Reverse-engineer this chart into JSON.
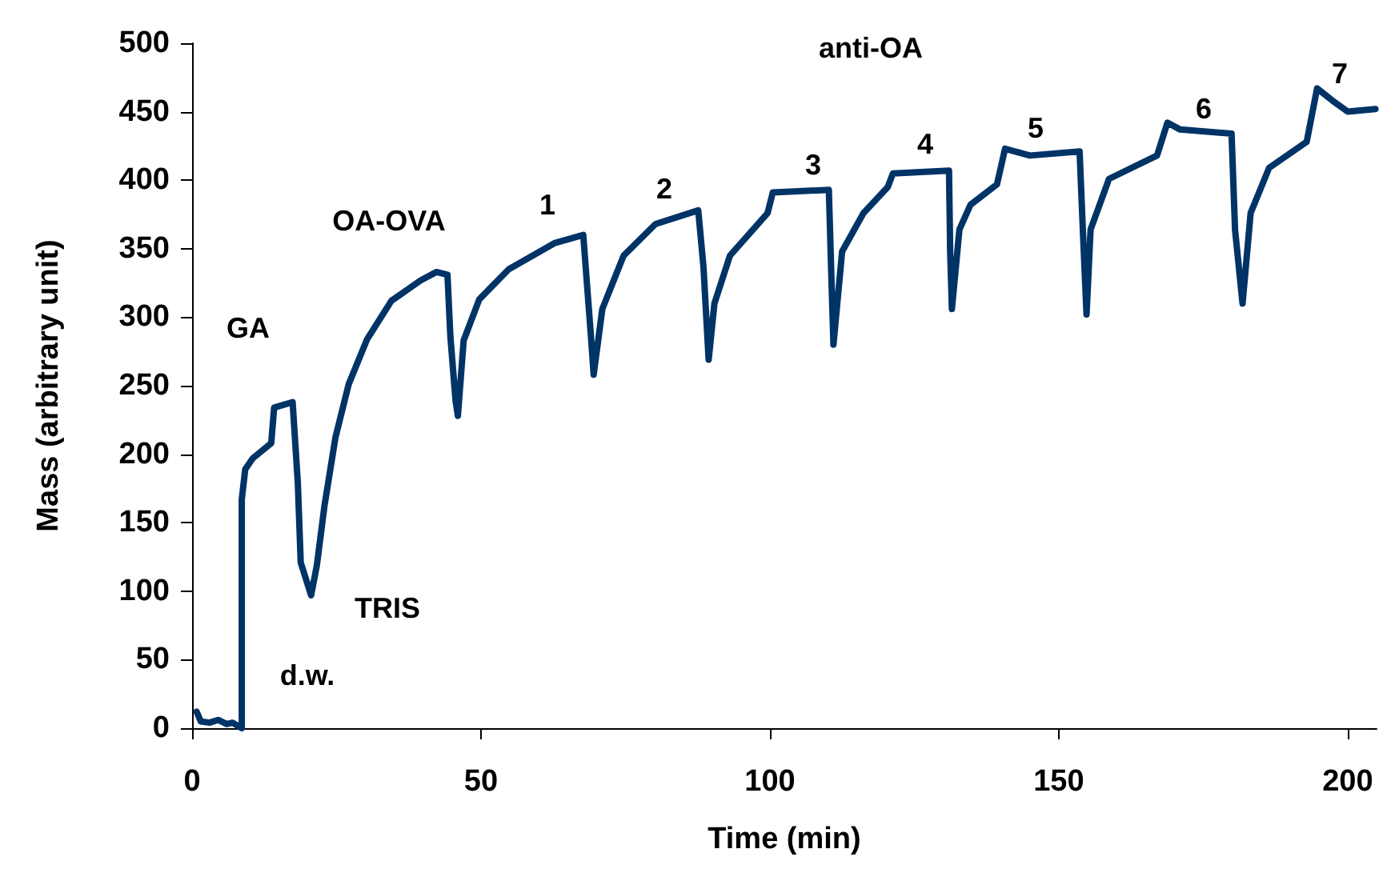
{
  "chart_data": {
    "type": "line",
    "xlabel": "Time (min)",
    "ylabel": "Mass (arbitrary unit)",
    "xlim": [
      0,
      205
    ],
    "xticks": [
      0,
      50,
      100,
      150,
      200
    ],
    "ylim": [
      0,
      500
    ],
    "yticks": [
      0,
      50,
      100,
      150,
      200,
      250,
      300,
      350,
      400,
      450,
      500
    ],
    "grid": false,
    "marker": "none",
    "line_style": "solid",
    "series": [
      {
        "color": "#003366",
        "x": [
          0.8,
          1.5,
          3,
          4.5,
          6,
          7,
          8.6,
          8.6,
          9.2,
          10.5,
          13.7,
          14.2,
          17.4,
          18.3,
          18.8,
          20.6,
          21.6,
          22.9,
          24.8,
          27.1,
          30.3,
          34.5,
          39.6,
          42.3,
          44.2,
          44.7,
          45.6,
          46,
          47,
          49.7,
          54.8,
          62.7,
          67.7,
          69.1,
          69.5,
          71,
          74.7,
          80.2,
          87.6,
          88.5,
          89.4,
          90.4,
          93.1,
          99.6,
          100.5,
          110.2,
          110.7,
          111,
          112.5,
          116.2,
          120.4,
          121.3,
          131,
          131.2,
          131.5,
          132.8,
          134.7,
          139.3,
          140.7,
          145,
          153.6,
          154.2,
          154.8,
          155.5,
          158.7,
          167,
          168.8,
          171,
          179.9,
          180.5,
          181.8,
          183.2,
          186.4,
          192.9,
          194.7,
          197.4,
          200,
          204.8
        ],
        "values": [
          12,
          5,
          4,
          6,
          3,
          4,
          0,
          167,
          189,
          197,
          208,
          234,
          238,
          179,
          121,
          97,
          119,
          162,
          212,
          251,
          284,
          312,
          327,
          333,
          331,
          286,
          239,
          228,
          283,
          313,
          335,
          354,
          360,
          282,
          258,
          306,
          345,
          368,
          378,
          337,
          269,
          310,
          345,
          376,
          391,
          393,
          321,
          280,
          348,
          376,
          395,
          405,
          407,
          348,
          306,
          364,
          382,
          397,
          423,
          418,
          421,
          360,
          302,
          364,
          401,
          418,
          442,
          437,
          434,
          364,
          310,
          376,
          409,
          428,
          467,
          458,
          450,
          452
        ]
      }
    ],
    "annotations": [
      "GA",
      "d.w.",
      "TRIS",
      "OA-OVA",
      "anti-OA",
      "1",
      "2",
      "3",
      "4",
      "5",
      "6",
      "7"
    ]
  }
}
